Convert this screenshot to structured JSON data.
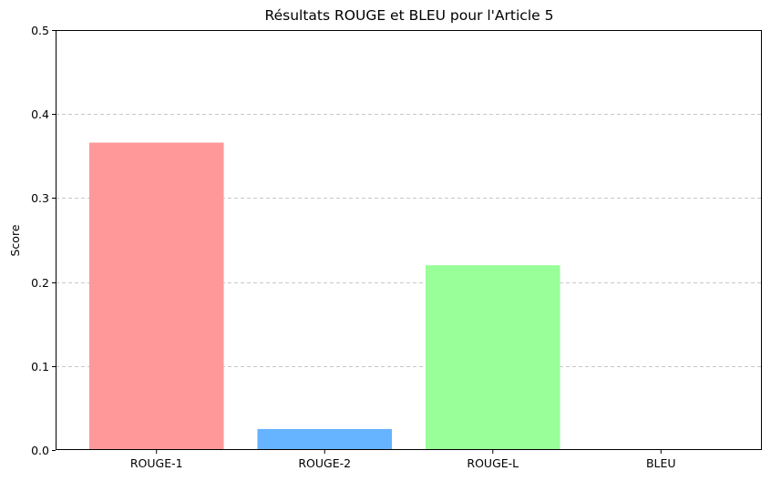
{
  "chart_data": {
    "type": "bar",
    "title": "Résultats ROUGE et BLEU pour l'Article 5",
    "xlabel": "",
    "ylabel": "Score",
    "categories": [
      "ROUGE-1",
      "ROUGE-2",
      "ROUGE-L",
      "BLEU"
    ],
    "values": [
      0.366,
      0.025,
      0.22,
      0.0
    ],
    "colors": [
      "#ff9999",
      "#66b3ff",
      "#99ff99",
      "#ffcc99"
    ],
    "ylim": [
      0,
      0.5
    ],
    "yticks": [
      "0.0",
      "0.1",
      "0.2",
      "0.3",
      "0.4",
      "0.5"
    ],
    "grid": "y-dashed",
    "legend": "none"
  }
}
